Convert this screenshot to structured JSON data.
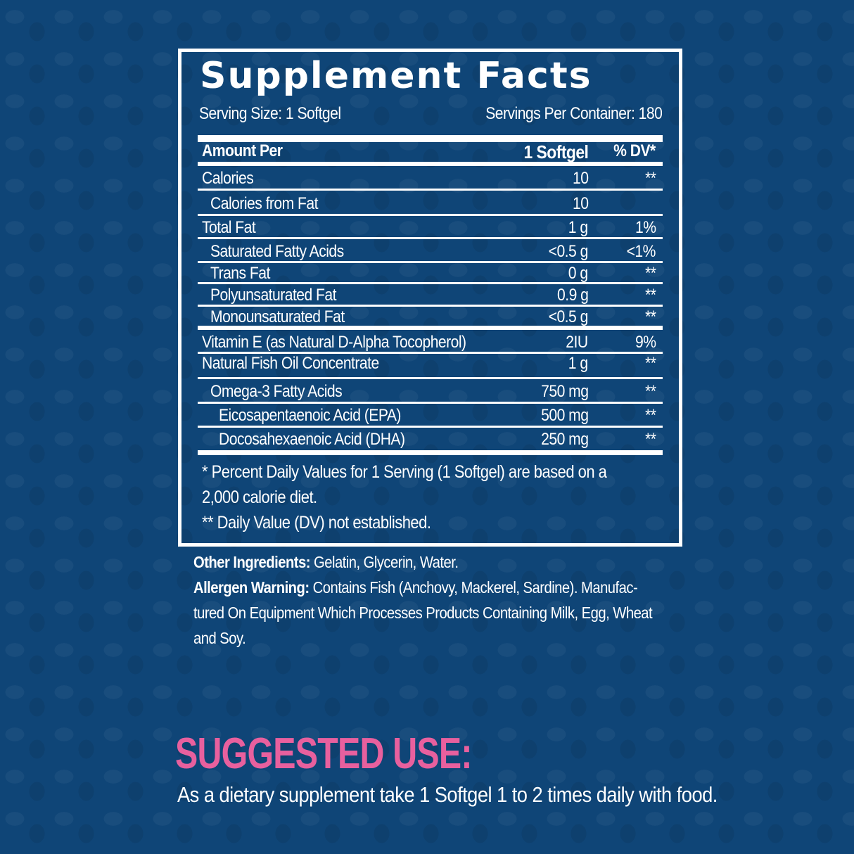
{
  "title": "Supplement Facts",
  "serving_size": "Serving Size: 1 Softgel",
  "servings_per_container": "Servings Per Container: 180",
  "header": {
    "amount": "Amount Per",
    "per": "1 Softgel",
    "dv": "% DV*"
  },
  "rows": [
    {
      "name": "Calories",
      "amount": "10",
      "dv": "**"
    },
    {
      "name": "Calories from Fat",
      "amount": "10",
      "dv": ""
    },
    {
      "name": "Total Fat",
      "amount": "1 g",
      "dv": "1%"
    },
    {
      "name": "Saturated Fatty Acids",
      "amount": "<0.5 g",
      "dv": "<1%"
    },
    {
      "name": "Trans Fat",
      "amount": "0 g",
      "dv": "**"
    },
    {
      "name": "Polyunsaturated Fat",
      "amount": "0.9 g",
      "dv": "**"
    },
    {
      "name": "Monounsaturated Fat",
      "amount": "<0.5 g",
      "dv": "**"
    },
    {
      "name": "Vitamin E (as Natural D-Alpha Tocopherol)",
      "amount": "2IU",
      "dv": "9%"
    },
    {
      "name": "Natural Fish Oil Concentrate",
      "amount": "1 g",
      "dv": "**"
    },
    {
      "name": "Omega-3 Fatty Acids",
      "amount": "750 mg",
      "dv": "**"
    },
    {
      "name": "Eicosapentaenoic Acid (EPA)",
      "amount": "500 mg",
      "dv": "**"
    },
    {
      "name": "Docosahexaenoic Acid (DHA)",
      "amount": "250 mg",
      "dv": "**"
    }
  ],
  "footnotes": [
    "* Percent Daily Values for 1 Serving (1 Softgel) are based on a",
    "2,000 calorie diet.",
    "** Daily Value (DV) not established."
  ],
  "other_ingredients": {
    "label": "Other Ingredients:",
    "text": " Gelatin, Glycerin, Water."
  },
  "allergen": {
    "label": "Allergen Warning:",
    "lines": [
      " Contains Fish (Anchovy, Mackerel, Sardine). Manufac-",
      "tured On Equipment Which Processes Products Containing Milk, Egg, Wheat",
      "and Soy."
    ]
  },
  "suggested_use": {
    "heading": "SUGGESTED USE:",
    "text": "As a dietary supplement take 1 Softgel 1 to 2 times daily with food."
  },
  "colors": {
    "background": "#0f4577",
    "accent": "#e8609e",
    "text": "#ffffff"
  }
}
